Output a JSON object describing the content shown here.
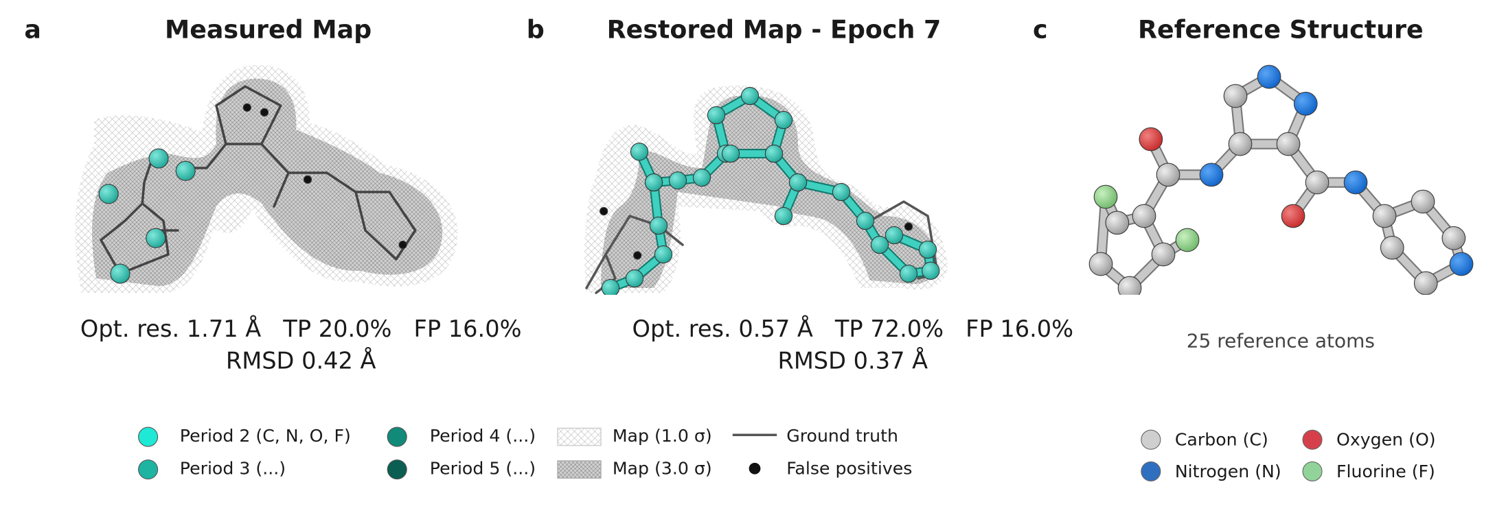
{
  "panels": [
    {
      "letter": "a",
      "title": "Measured Map",
      "metrics": [
        "Opt. res. 1.71 Å   TP 20.0%   FP 16.0%",
        "RMSD 0.42 Å"
      ]
    },
    {
      "letter": "b",
      "title": "Restored Map - Epoch 7",
      "metrics": [
        "Opt. res. 0.57 Å   TP 72.0%   FP 16.0%",
        "RMSD 0.37 Å"
      ]
    },
    {
      "letter": "c",
      "title": "Reference Structure",
      "note": "25 reference atoms"
    }
  ],
  "legend": [
    "Period 2 (C, N, O, F)",
    "Period 3 (...)",
    "Period 4 (...)",
    "Period 5 (...)",
    "Map (1.0 σ)",
    "Map (3.0 σ)",
    "Ground truth",
    "False positives"
  ],
  "element_legend": [
    "Carbon (C)",
    "Nitrogen (N)",
    "Oxygen (O)",
    "Fluorine (F)"
  ]
}
